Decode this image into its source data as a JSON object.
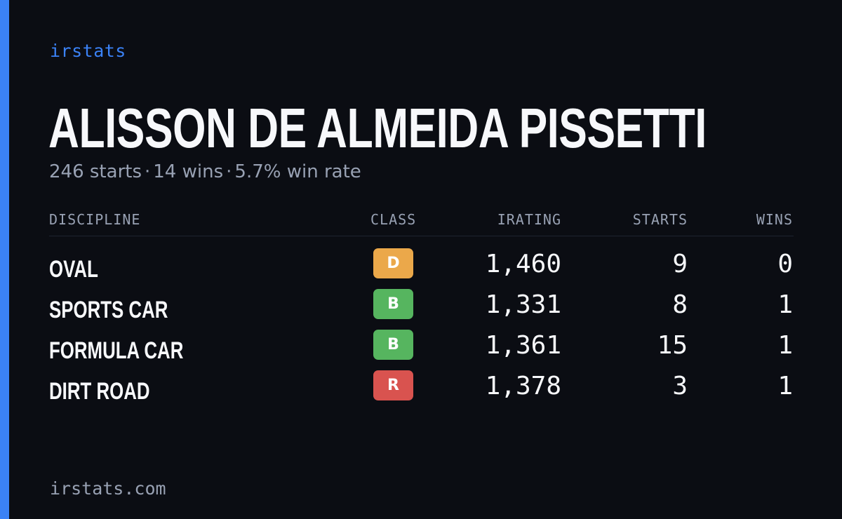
{
  "brand": "irstats",
  "driver": {
    "name": "ALISSON DE ALMEIDA PISSETTI",
    "starts_text": "246 starts",
    "wins_text": "14 wins",
    "win_rate_text": "5.7% win rate",
    "separator": "·"
  },
  "table": {
    "headers": {
      "discipline": "DISCIPLINE",
      "class": "CLASS",
      "irating": "IRATING",
      "starts": "STARTS",
      "wins": "WINS"
    },
    "rows": [
      {
        "discipline": "OVAL",
        "class": "D",
        "class_color": "#eba84a",
        "irating": "1,460",
        "starts": "9",
        "wins": "0"
      },
      {
        "discipline": "SPORTS CAR",
        "class": "B",
        "class_color": "#56b55f",
        "irating": "1,331",
        "starts": "8",
        "wins": "1"
      },
      {
        "discipline": "FORMULA CAR",
        "class": "B",
        "class_color": "#56b55f",
        "irating": "1,361",
        "starts": "15",
        "wins": "1"
      },
      {
        "discipline": "DIRT ROAD",
        "class": "R",
        "class_color": "#d9534f",
        "irating": "1,378",
        "starts": "3",
        "wins": "1"
      }
    ]
  },
  "footer": "irstats.com",
  "colors": {
    "background": "#0b0d13",
    "accent": "#3b82f6",
    "muted": "#98a1b3",
    "text": "#f7f8fb"
  }
}
